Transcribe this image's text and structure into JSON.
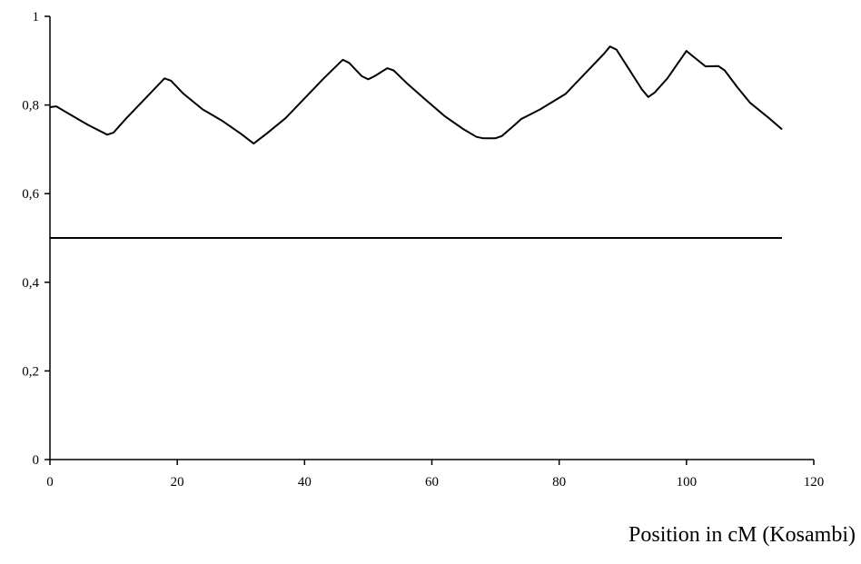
{
  "chart_data": {
    "type": "line",
    "title": "",
    "xlabel": "Position in cM (Kosambi)",
    "ylabel": "",
    "xlim": [
      0,
      120
    ],
    "ylim": [
      0,
      1
    ],
    "x_ticks": [
      0,
      20,
      40,
      60,
      80,
      100,
      120
    ],
    "x_tick_labels": [
      "0",
      "20",
      "40",
      "60",
      "80",
      "100",
      "120"
    ],
    "y_ticks": [
      0,
      0.2,
      0.4,
      0.6,
      0.8,
      1
    ],
    "y_tick_labels": [
      "0",
      "0,2",
      "0,4",
      "0,6",
      "0,8",
      "1"
    ],
    "grid": false,
    "legend": "none",
    "series": [
      {
        "x": [
          0,
          1,
          3,
          6,
          9,
          10,
          12,
          15,
          18,
          19,
          21,
          24,
          27,
          30,
          32,
          34,
          37,
          40,
          43,
          46,
          47,
          49,
          50,
          51,
          53,
          54,
          56,
          59,
          62,
          65,
          67,
          68,
          70,
          71,
          73,
          74,
          77,
          81,
          84,
          87,
          88,
          89,
          91,
          93,
          94,
          95,
          97,
          100,
          101,
          103,
          105,
          106,
          108,
          110,
          113,
          115
        ],
        "y": [
          0.795,
          0.797,
          0.78,
          0.755,
          0.733,
          0.738,
          0.77,
          0.815,
          0.86,
          0.855,
          0.825,
          0.79,
          0.765,
          0.735,
          0.713,
          0.735,
          0.77,
          0.815,
          0.86,
          0.902,
          0.895,
          0.865,
          0.858,
          0.865,
          0.883,
          0.878,
          0.85,
          0.812,
          0.775,
          0.745,
          0.728,
          0.725,
          0.725,
          0.73,
          0.755,
          0.768,
          0.79,
          0.825,
          0.87,
          0.915,
          0.932,
          0.925,
          0.88,
          0.835,
          0.818,
          0.828,
          0.86,
          0.922,
          0.91,
          0.887,
          0.888,
          0.878,
          0.84,
          0.805,
          0.77,
          0.745
        ]
      },
      {
        "x": [
          0,
          115
        ],
        "y": [
          0.5,
          0.5
        ]
      }
    ]
  }
}
